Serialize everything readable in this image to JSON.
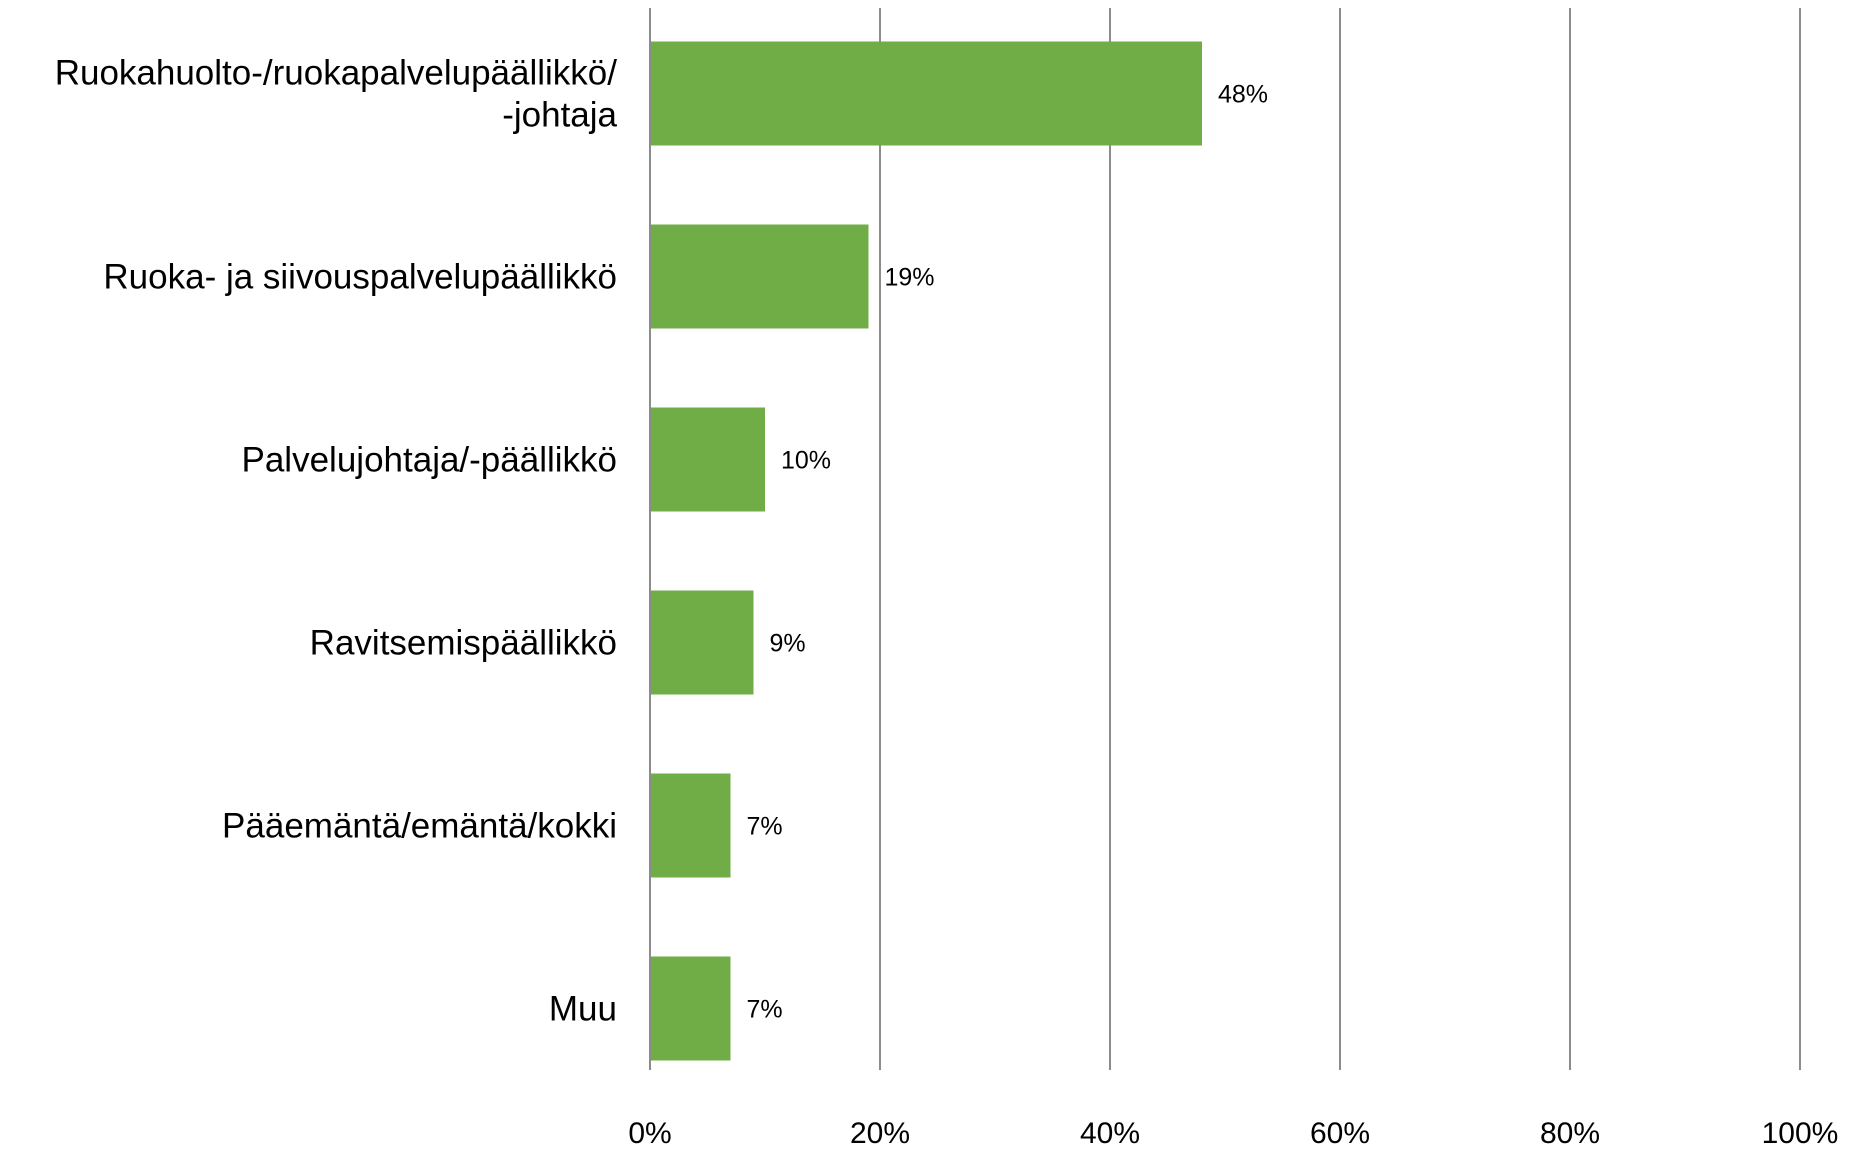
{
  "chart_data": {
    "type": "bar",
    "orientation": "horizontal",
    "categories": [
      [
        "Ruokahuolto-/ruokapalvelupäällikkö/",
        "-johtaja"
      ],
      [
        "Ruoka- ja siivouspalvelupäällikkö"
      ],
      [
        "Palvelujohtaja/-päällikkö"
      ],
      [
        "Ravitsemispäällikkö"
      ],
      [
        "Pääemäntä/emäntä/kokki"
      ],
      [
        "Muu"
      ]
    ],
    "values": [
      48,
      19,
      10,
      9,
      7,
      7
    ],
    "data_labels": [
      "48%",
      "19%",
      "10%",
      "9%",
      "7%",
      "7%"
    ],
    "xlim": [
      0,
      100
    ],
    "x_ticks": [
      0,
      20,
      40,
      60,
      80,
      100
    ],
    "x_tick_labels": [
      "0%",
      "20%",
      "40%",
      "60%",
      "80%",
      "100%"
    ],
    "grid": true,
    "legend": "none",
    "bar_color": "#70ad47",
    "grid_color": "#8c8c8c"
  }
}
